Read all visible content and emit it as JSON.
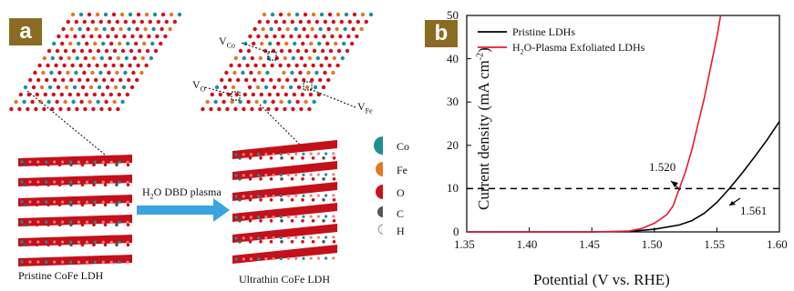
{
  "panel_a": {
    "badge": "a",
    "vacancy_labels": [
      "V",
      "Co",
      "V",
      "O",
      "V",
      "Fe"
    ],
    "process_label_prefix": "H",
    "process_label_sub": "2",
    "process_label_suffix": "O DBD plasma",
    "left_caption": "Pristine CoFe LDH",
    "right_caption": "Ultrathin CoFe LDH",
    "legend": [
      {
        "label": "Co",
        "color": "#1c8f97"
      },
      {
        "label": "Fe",
        "color": "#e07a22"
      },
      {
        "label": "O",
        "color": "#d0101a"
      },
      {
        "label": "C",
        "color": "#555555"
      },
      {
        "label": "H",
        "color": "#f2f2f2"
      }
    ]
  },
  "panel_b": {
    "badge": "b"
  },
  "chart_data": {
    "type": "line",
    "xlabel": "Potential (V vs. RHE)",
    "ylabel": "Current density (mA cm",
    "ylabel_sup": "-2",
    "ylabel_end": ")",
    "xlim": [
      1.35,
      1.6
    ],
    "ylim": [
      0,
      50
    ],
    "xticks": [
      "1.35",
      "1.40",
      "1.45",
      "1.50",
      "1.55",
      "1.60"
    ],
    "yticks": [
      "0",
      "10",
      "20",
      "30",
      "40",
      "50"
    ],
    "legend_position": "top-left",
    "series": [
      {
        "name": "Pristine LDHs",
        "color": "#000000",
        "x": [
          1.35,
          1.45,
          1.48,
          1.5,
          1.52,
          1.53,
          1.54,
          1.55,
          1.56,
          1.57,
          1.58,
          1.59,
          1.6
        ],
        "y": [
          0,
          0,
          0.1,
          0.6,
          1.6,
          2.6,
          4.3,
          6.8,
          10,
          13.5,
          17.3,
          21.2,
          25.5
        ]
      },
      {
        "name": "H2O-Plasma Exfoliated LDHs",
        "name_parts": [
          "H",
          "2",
          "O-Plasma Exfoliated LDHs"
        ],
        "color": "#e8192c",
        "x": [
          1.35,
          1.45,
          1.48,
          1.49,
          1.5,
          1.51,
          1.515,
          1.52,
          1.525,
          1.53,
          1.535,
          1.54,
          1.545,
          1.55,
          1.553
        ],
        "y": [
          0,
          0,
          0.2,
          0.8,
          2.0,
          4.0,
          6.0,
          10,
          14,
          19,
          25,
          31,
          38,
          45,
          50
        ]
      }
    ],
    "reference_line": {
      "y": 10,
      "style": "dashed"
    },
    "annotations": [
      {
        "text": "1.520",
        "x": 1.52,
        "y": 10
      },
      {
        "text": "1.561",
        "x": 1.561,
        "y": 10
      }
    ]
  }
}
